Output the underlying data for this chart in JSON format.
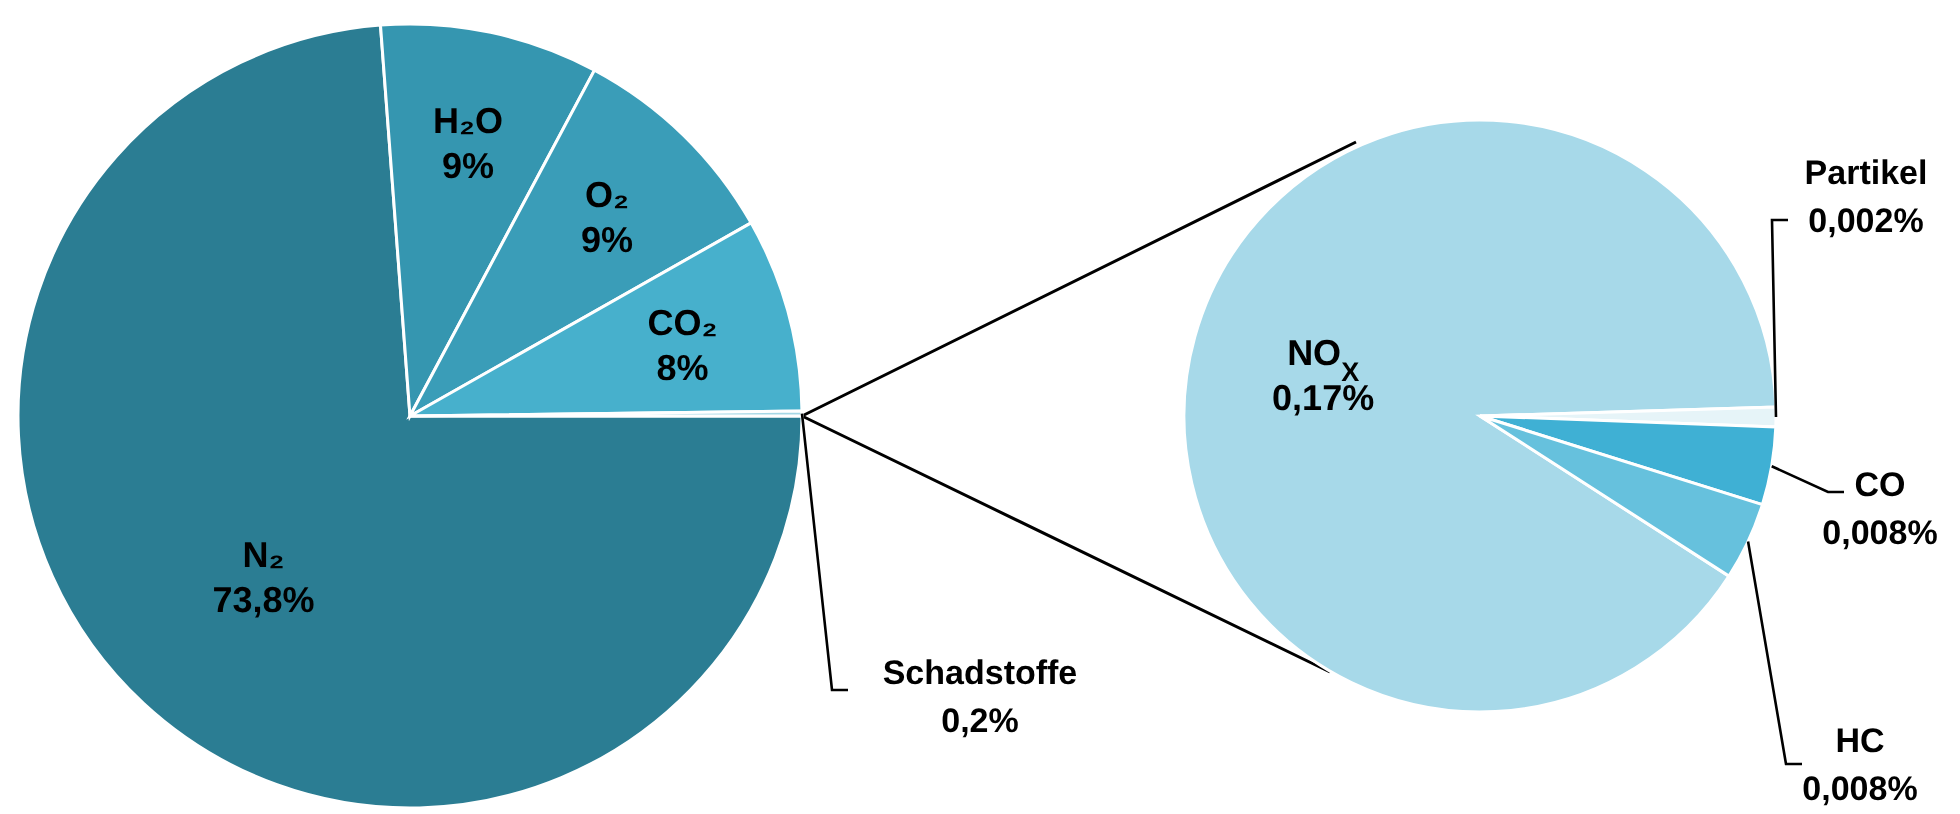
{
  "chart_data": [
    {
      "type": "pie",
      "categories": [
        "N₂",
        "H₂O",
        "O₂",
        "CO₂",
        "Schadstoffe"
      ],
      "values": [
        73.8,
        9,
        9,
        8,
        0.2
      ],
      "value_labels": [
        "73,8%",
        "9%",
        "9%",
        "8%",
        "0,2%"
      ],
      "colors": [
        "#2b7d93",
        "#3596b0",
        "#3a9db8",
        "#47b0cc",
        "#a6d8e6"
      ]
    },
    {
      "type": "pie",
      "categories": [
        "NO$_{X}$",
        "Partikel",
        "CO",
        "HC"
      ],
      "values": [
        0.17,
        0.002,
        0.008,
        0.008
      ],
      "value_labels": [
        "0,17%",
        "0,002%",
        "0,008%",
        "0,008%"
      ],
      "colors": [
        "#a7d9e9",
        "#e6f4f8",
        "#3fb0d4",
        "#66c1dd"
      ]
    }
  ]
}
